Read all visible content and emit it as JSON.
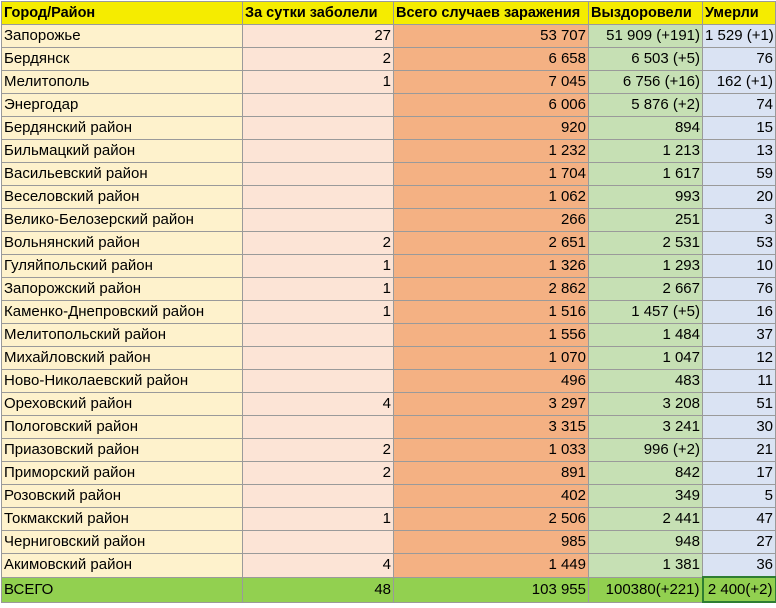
{
  "headers": [
    "Город/Район",
    "За сутки заболели",
    "Всего случаев заражения",
    "Выздоровели",
    "Умерли"
  ],
  "rows": [
    {
      "name": "Запорожье",
      "daily": "27",
      "total": "53 707",
      "recovered": "51 909 (+191)",
      "died": "1 529 (+1)"
    },
    {
      "name": "Бердянск",
      "daily": "2",
      "total": "6 658",
      "recovered": "6 503 (+5)",
      "died": "76"
    },
    {
      "name": "Мелитополь",
      "daily": "1",
      "total": "7 045",
      "recovered": "6 756 (+16)",
      "died": "162 (+1)"
    },
    {
      "name": "Энергодар",
      "daily": "",
      "total": "6 006",
      "recovered": "5 876 (+2)",
      "died": "74"
    },
    {
      "name": "Бердянский район",
      "daily": "",
      "total": "920",
      "recovered": "894",
      "died": "15"
    },
    {
      "name": "Бильмацкий район",
      "daily": "",
      "total": "1 232",
      "recovered": "1 213",
      "died": "13"
    },
    {
      "name": "Васильевский район",
      "daily": "",
      "total": "1 704",
      "recovered": "1 617",
      "died": "59"
    },
    {
      "name": "Веселовский район",
      "daily": "",
      "total": "1 062",
      "recovered": "993",
      "died": "20"
    },
    {
      "name": "Велико-Белозерский район",
      "daily": "",
      "total": "266",
      "recovered": "251",
      "died": "3"
    },
    {
      "name": "Вольнянский район",
      "daily": "2",
      "total": "2 651",
      "recovered": "2 531",
      "died": "53"
    },
    {
      "name": "Гуляйпольский район",
      "daily": "1",
      "total": "1 326",
      "recovered": "1 293",
      "died": "10"
    },
    {
      "name": "Запорожский район",
      "daily": "1",
      "total": "2 862",
      "recovered": "2 667",
      "died": "76"
    },
    {
      "name": "Каменко-Днепровский район",
      "daily": "1",
      "total": "1 516",
      "recovered": "1 457 (+5)",
      "died": "16"
    },
    {
      "name": "Мелитопольский район",
      "daily": "",
      "total": "1 556",
      "recovered": "1 484",
      "died": "37"
    },
    {
      "name": "Михайловский район",
      "daily": "",
      "total": "1 070",
      "recovered": "1 047",
      "died": "12"
    },
    {
      "name": "Ново-Николаевский район",
      "daily": "",
      "total": "496",
      "recovered": "483",
      "died": "11"
    },
    {
      "name": "Ореховский район",
      "daily": "4",
      "total": "3 297",
      "recovered": "3 208",
      "died": "51"
    },
    {
      "name": "Пологовский район",
      "daily": "",
      "total": "3 315",
      "recovered": "3 241",
      "died": "30"
    },
    {
      "name": "Приазовский район",
      "daily": "2",
      "total": "1 033",
      "recovered": "996 (+2)",
      "died": "21"
    },
    {
      "name": "Приморский район",
      "daily": "2",
      "total": "891",
      "recovered": "842",
      "died": "17"
    },
    {
      "name": "Розовский район",
      "daily": "",
      "total": "402",
      "recovered": "349",
      "died": "5"
    },
    {
      "name": "Токмакский район",
      "daily": "1",
      "total": "2 506",
      "recovered": "2 441",
      "died": "47"
    },
    {
      "name": "Черниговский район",
      "daily": "",
      "total": "985",
      "recovered": "948",
      "died": "27"
    },
    {
      "name": "Акимовский район",
      "daily": "4",
      "total": "1 449",
      "recovered": "1 381",
      "died": "36"
    }
  ],
  "summary": {
    "name": "ВСЕГО",
    "daily": "48",
    "total": "103 955",
    "recovered": "100380(+221)",
    "died": "2 400(+2)"
  }
}
